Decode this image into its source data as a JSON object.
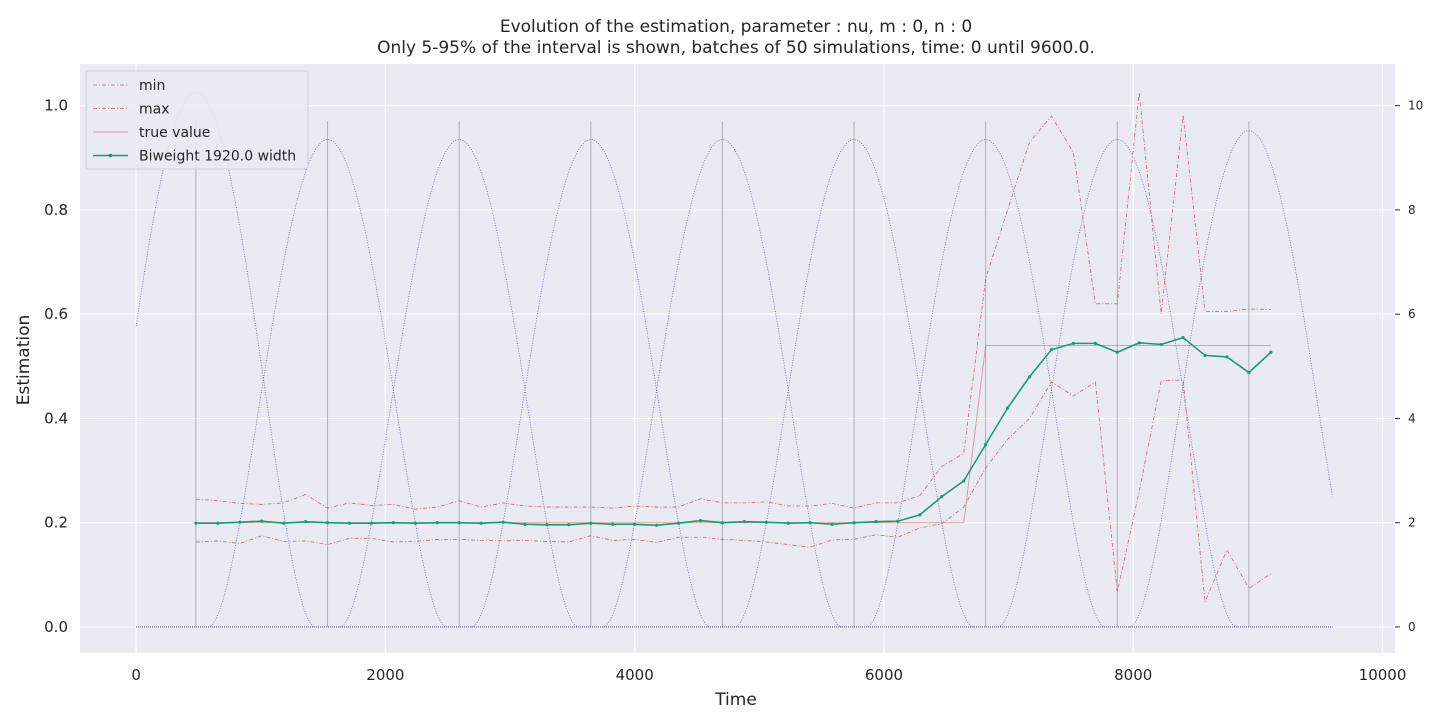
{
  "chart_data": {
    "type": "line",
    "title": "Evolution of the estimation, parameter : nu, m : 0, n : 0",
    "subtitle": "Only 5-95% of the interval is shown, batches of 50 simulations, time: 0 until 9600.0.",
    "xlabel": "Time",
    "ylabel": "Estimation",
    "xlim": [
      -450,
      10100
    ],
    "ylim": [
      -0.05,
      1.08
    ],
    "y2lim": [
      -0.5,
      10.8
    ],
    "xticks": [
      0,
      2000,
      4000,
      6000,
      8000,
      10000
    ],
    "xtick_labels": [
      "0",
      "2000",
      "4000",
      "6000",
      "8000",
      "10000"
    ],
    "yticks": [
      0.0,
      0.2,
      0.4,
      0.6,
      0.8,
      1.0
    ],
    "ytick_labels": [
      "0.0",
      "0.2",
      "0.4",
      "0.6",
      "0.8",
      "1.0"
    ],
    "y2ticks": [
      0,
      2,
      4,
      6,
      8,
      10
    ],
    "y2tick_labels": [
      "0",
      "2",
      "4",
      "6",
      "8",
      "10"
    ],
    "grid": true,
    "legend_placement": "upper-left",
    "colors": {
      "background": "#eaeaf2",
      "grid": "#ffffff",
      "min_max": "#c44e52",
      "true_value": "#c44e52",
      "estimate": "#169e73",
      "kernel": "#4c4c9c",
      "vline": "#a0a0a0"
    },
    "x": [
      480,
      656,
      832,
      1008,
      1184,
      1360,
      1536,
      1712,
      1888,
      2064,
      2240,
      2416,
      2592,
      2768,
      2944,
      3120,
      3296,
      3472,
      3648,
      3824,
      4000,
      4176,
      4352,
      4528,
      4704,
      4880,
      5056,
      5232,
      5408,
      5584,
      5760,
      5936,
      6112,
      6288,
      6464,
      6640,
      6816,
      6992,
      7168,
      7344,
      7520,
      7696,
      7872,
      8048,
      8224,
      8400,
      8576,
      8752,
      8928,
      9104
    ],
    "series": [
      {
        "name": "min",
        "style": "dashdot",
        "values": [
          0.163,
          0.165,
          0.16,
          0.175,
          0.164,
          0.165,
          0.158,
          0.17,
          0.17,
          0.163,
          0.164,
          0.168,
          0.168,
          0.166,
          0.165,
          0.166,
          0.164,
          0.163,
          0.175,
          0.166,
          0.168,
          0.162,
          0.172,
          0.172,
          0.168,
          0.166,
          0.163,
          0.158,
          0.153,
          0.167,
          0.168,
          0.177,
          0.172,
          0.19,
          0.198,
          0.23,
          0.305,
          0.36,
          0.4,
          0.47,
          0.443,
          0.47,
          0.067,
          0.26,
          0.472,
          0.474,
          0.048,
          0.148,
          0.074,
          0.102
        ]
      },
      {
        "name": "max",
        "style": "dashdot",
        "values": [
          0.245,
          0.242,
          0.237,
          0.235,
          0.238,
          0.254,
          0.228,
          0.238,
          0.233,
          0.235,
          0.226,
          0.23,
          0.242,
          0.23,
          0.238,
          0.232,
          0.23,
          0.23,
          0.23,
          0.228,
          0.232,
          0.23,
          0.23,
          0.246,
          0.238,
          0.238,
          0.24,
          0.232,
          0.232,
          0.237,
          0.228,
          0.238,
          0.238,
          0.252,
          0.308,
          0.333,
          0.668,
          0.8,
          0.93,
          0.98,
          0.91,
          0.62,
          0.62,
          1.025,
          0.6,
          0.982,
          0.605,
          0.605,
          0.61,
          0.609
        ]
      },
      {
        "name": "true value",
        "style": "solid",
        "values": [
          0.2,
          0.2,
          0.2,
          0.2,
          0.2,
          0.2,
          0.2,
          0.2,
          0.2,
          0.2,
          0.2,
          0.2,
          0.2,
          0.2,
          0.2,
          0.2,
          0.2,
          0.2,
          0.2,
          0.2,
          0.2,
          0.2,
          0.2,
          0.2,
          0.2,
          0.2,
          0.2,
          0.2,
          0.2,
          0.2,
          0.2,
          0.2,
          0.2,
          0.2,
          0.2,
          0.2,
          0.54,
          0.54,
          0.54,
          0.54,
          0.54,
          0.54,
          0.54,
          0.54,
          0.54,
          0.54,
          0.54,
          0.54,
          0.54,
          0.54
        ]
      },
      {
        "name": "Biweight 1920.0 width",
        "style": "solid-marker",
        "values": [
          0.199,
          0.199,
          0.201,
          0.203,
          0.199,
          0.202,
          0.2,
          0.199,
          0.199,
          0.2,
          0.199,
          0.2,
          0.2,
          0.199,
          0.201,
          0.197,
          0.196,
          0.196,
          0.199,
          0.197,
          0.197,
          0.195,
          0.199,
          0.204,
          0.2,
          0.202,
          0.201,
          0.199,
          0.2,
          0.197,
          0.2,
          0.202,
          0.203,
          0.215,
          0.25,
          0.28,
          0.35,
          0.42,
          0.48,
          0.532,
          0.544,
          0.544,
          0.527,
          0.545,
          0.542,
          0.555,
          0.521,
          0.518,
          0.488,
          0.527
        ]
      }
    ],
    "kernel_series": {
      "axis": "right",
      "style": "dotted",
      "centers": [
        480,
        1536,
        2592,
        3648,
        4704,
        5760,
        6816,
        7872,
        8928
      ],
      "peaks": [
        10.25,
        9.35,
        9.35,
        9.35,
        9.35,
        9.35,
        9.35,
        9.35,
        9.52
      ],
      "half_width": 960,
      "baseline": 0,
      "x_range": [
        0,
        9600
      ]
    },
    "vlines": {
      "x": [
        480,
        1536,
        2592,
        3648,
        4704,
        5760,
        6816,
        7872,
        8928
      ],
      "y_top": 0.97
    }
  }
}
